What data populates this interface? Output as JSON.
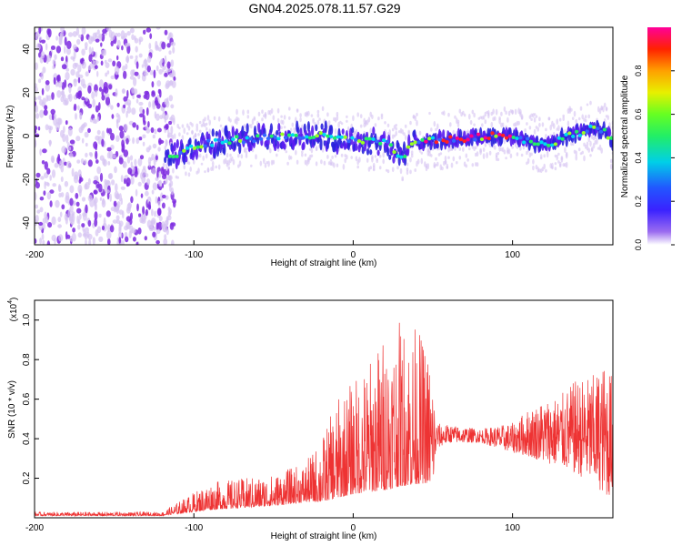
{
  "title": "GN04.2025.078.11.57.G29",
  "colors": {
    "snr_line": "#ee3333",
    "dots_faint": "#d6c3f2",
    "dots_strong": "#7e2be0",
    "axis": "#000000"
  },
  "chart_data": [
    {
      "type": "heatmap",
      "name": "spectrogram",
      "xlabel": "Height of straight line (km)",
      "ylabel": "Frequency (Hz)",
      "xlim": [
        -200,
        163
      ],
      "ylim": [
        -50,
        50
      ],
      "x_ticks": [
        -200,
        -100,
        0,
        100
      ],
      "y_ticks": [
        -40,
        -20,
        0,
        20,
        40
      ],
      "noise_region_x": [
        -200,
        -115
      ],
      "signal_track": {
        "x": [
          -115,
          -100,
          -80,
          -60,
          -40,
          -20,
          0,
          20,
          30,
          35,
          40,
          60,
          80,
          100,
          120,
          140,
          150,
          158,
          163
        ],
        "freq": [
          -10,
          -5,
          -2,
          -1,
          0,
          0,
          -2,
          -3,
          -10,
          -6,
          -2,
          -2,
          0,
          0,
          -4,
          1,
          4,
          3,
          -3
        ]
      },
      "colorbar": {
        "label": "Normalized spectral amplitude",
        "range": [
          0,
          1
        ],
        "ticks": [
          0.0,
          0.2,
          0.4,
          0.6,
          0.8
        ]
      }
    },
    {
      "type": "line",
      "name": "snr",
      "xlabel": "Height of straight line (km)",
      "ylabel": "SNR (10 * v/v)",
      "multiplier_label": "(x10",
      "multiplier_exp": "4",
      "xlim": [
        -200,
        163
      ],
      "ylim": [
        0,
        1.1
      ],
      "x_ticks": [
        -200,
        -100,
        0,
        100
      ],
      "y_ticks": [
        0.2,
        0.4,
        0.6,
        0.8,
        1.0
      ],
      "envelope": {
        "x": [
          -200,
          -120,
          -110,
          -90,
          -70,
          -50,
          -30,
          -20,
          -10,
          0,
          10,
          20,
          30,
          40,
          50,
          52,
          60,
          80,
          100,
          110,
          120,
          130,
          140,
          150,
          160,
          163
        ],
        "low": [
          0.01,
          0.01,
          0.02,
          0.04,
          0.05,
          0.06,
          0.08,
          0.08,
          0.1,
          0.12,
          0.13,
          0.14,
          0.16,
          0.17,
          0.18,
          0.35,
          0.38,
          0.38,
          0.33,
          0.31,
          0.28,
          0.26,
          0.22,
          0.18,
          0.1,
          0.15
        ],
        "high": [
          0.03,
          0.03,
          0.08,
          0.18,
          0.2,
          0.22,
          0.28,
          0.4,
          0.6,
          0.7,
          0.8,
          0.95,
          1.0,
          0.98,
          0.8,
          0.48,
          0.47,
          0.45,
          0.48,
          0.55,
          0.6,
          0.62,
          0.7,
          0.72,
          0.8,
          0.7
        ]
      }
    }
  ]
}
